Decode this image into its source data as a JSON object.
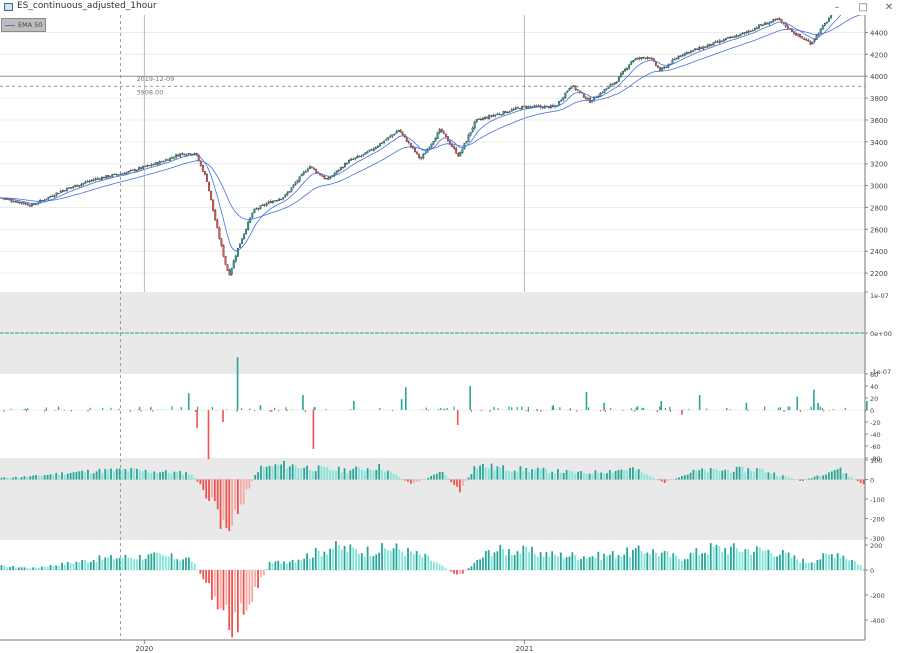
{
  "window": {
    "title": "ES_continuous_adjusted_1hour",
    "minimize": "–",
    "maximize": "□",
    "close": "✕"
  },
  "legend": {
    "label": "EMA 50",
    "color": "#4a6fdc"
  },
  "crosshair": {
    "date": "2019-12-09",
    "price": "3908.00"
  },
  "colors": {
    "up": "#26a69a",
    "down": "#ef5350",
    "up_light": "#80e5d8",
    "down_light": "#f7a8a6",
    "ema": "#4a6fdc",
    "panel_bg": "#e9e9e9"
  },
  "chart_data": [
    {
      "type": "candlestick",
      "name": "price",
      "x_range": [
        "2019-08-15",
        "2021-11-25"
      ],
      "ylim": [
        2100,
        4560
      ],
      "yticks": [
        "2200",
        "2400",
        "2600",
        "2800",
        "3000",
        "3200",
        "3400",
        "3600",
        "3800",
        "4000",
        "4200",
        "4400"
      ],
      "xticks": [
        {
          "date": "2020-01-01",
          "label": "2020"
        },
        {
          "date": "2021-01-01",
          "label": "2021"
        }
      ],
      "horizontal_line": 4000,
      "close_series": [
        [
          "2019-08-15",
          2890
        ],
        [
          "2019-09-15",
          2820
        ],
        [
          "2019-10-15",
          2960
        ],
        [
          "2019-11-15",
          3060
        ],
        [
          "2019-12-15",
          3120
        ],
        [
          "2020-01-15",
          3210
        ],
        [
          "2020-02-05",
          3290
        ],
        [
          "2020-02-19",
          3300
        ],
        [
          "2020-03-01",
          3060
        ],
        [
          "2020-03-10",
          2650
        ],
        [
          "2020-03-20",
          2250
        ],
        [
          "2020-03-23",
          2190
        ],
        [
          "2020-04-01",
          2450
        ],
        [
          "2020-04-15",
          2770
        ],
        [
          "2020-05-01",
          2850
        ],
        [
          "2020-05-15",
          2900
        ],
        [
          "2020-06-08",
          3180
        ],
        [
          "2020-06-25",
          3050
        ],
        [
          "2020-07-15",
          3220
        ],
        [
          "2020-08-01",
          3290
        ],
        [
          "2020-08-25",
          3450
        ],
        [
          "2020-09-02",
          3510
        ],
        [
          "2020-09-23",
          3240
        ],
        [
          "2020-10-12",
          3510
        ],
        [
          "2020-10-30",
          3270
        ],
        [
          "2020-11-15",
          3590
        ],
        [
          "2020-12-01",
          3640
        ],
        [
          "2020-12-31",
          3720
        ],
        [
          "2021-01-31",
          3720
        ],
        [
          "2021-02-15",
          3920
        ],
        [
          "2021-03-05",
          3770
        ],
        [
          "2021-03-31",
          3960
        ],
        [
          "2021-04-15",
          4150
        ],
        [
          "2021-05-01",
          4180
        ],
        [
          "2021-05-12",
          4050
        ],
        [
          "2021-06-01",
          4200
        ],
        [
          "2021-06-30",
          4290
        ],
        [
          "2021-07-15",
          4340
        ],
        [
          "2021-07-31",
          4390
        ],
        [
          "2021-08-15",
          4460
        ],
        [
          "2021-09-02",
          4520
        ],
        [
          "2021-09-20",
          4380
        ],
        [
          "2021-10-04",
          4300
        ],
        [
          "2021-10-22",
          4540
        ],
        [
          "2021-11-05",
          4690
        ],
        [
          "2021-11-18",
          4680
        ],
        [
          "2021-11-25",
          4560
        ]
      ],
      "overlay": {
        "name": "EMA 50"
      }
    },
    {
      "type": "line",
      "name": "panel-1",
      "ylim": [
        -1e-07,
        1e-07
      ],
      "yticks": [
        "1e-07",
        "0e+00",
        "-1e-07"
      ],
      "values": "constant 0"
    },
    {
      "type": "bar",
      "name": "panel-2",
      "ylim": [
        -80,
        60
      ],
      "yticks": [
        "60",
        "40",
        "20",
        "0",
        "-20",
        "-40",
        "-60",
        "-80"
      ],
      "spikes": [
        [
          "2020-02-20",
          -30
        ],
        [
          "2020-03-02",
          -82
        ],
        [
          "2020-03-16",
          -20
        ],
        [
          "2020-03-30",
          88
        ],
        [
          "2020-04-21",
          8
        ],
        [
          "2020-06-11",
          -65
        ],
        [
          "2020-02-12",
          28
        ],
        [
          "2020-06-01",
          25
        ],
        [
          "2020-07-20",
          15
        ],
        [
          "2020-09-08",
          38
        ],
        [
          "2020-09-04",
          18
        ],
        [
          "2020-10-28",
          -25
        ],
        [
          "2020-11-09",
          40
        ],
        [
          "2021-01-28",
          8
        ],
        [
          "2021-03-01",
          30
        ],
        [
          "2021-03-18",
          12
        ],
        [
          "2021-04-19",
          6
        ],
        [
          "2021-05-12",
          15
        ],
        [
          "2021-06-18",
          25
        ],
        [
          "2021-06-01",
          -8
        ],
        [
          "2021-08-02",
          12
        ],
        [
          "2021-09-20",
          22
        ],
        [
          "2021-10-06",
          34
        ],
        [
          "2021-10-10",
          12
        ],
        [
          "2021-11-26",
          15
        ]
      ]
    },
    {
      "type": "bar",
      "name": "panel-3",
      "ylim": [
        -310,
        110
      ],
      "yticks": [
        "100",
        "0",
        "-100",
        "-200",
        "-300"
      ],
      "envelope": [
        [
          "2019-08-15",
          10
        ],
        [
          "2019-09-15",
          20
        ],
        [
          "2019-10-15",
          40
        ],
        [
          "2019-11-15",
          55
        ],
        [
          "2019-12-15",
          60
        ],
        [
          "2020-01-15",
          50
        ],
        [
          "2020-02-15",
          40
        ],
        [
          "2020-02-25",
          -50
        ],
        [
          "2020-03-05",
          -150
        ],
        [
          "2020-03-15",
          -250
        ],
        [
          "2020-03-25",
          -310
        ],
        [
          "2020-04-05",
          -130
        ],
        [
          "2020-04-20",
          70
        ],
        [
          "2020-05-15",
          95
        ],
        [
          "2020-06-15",
          70
        ],
        [
          "2020-07-15",
          60
        ],
        [
          "2020-08-15",
          80
        ],
        [
          "2020-09-15",
          -30
        ],
        [
          "2020-10-15",
          50
        ],
        [
          "2020-10-30",
          -80
        ],
        [
          "2020-11-15",
          90
        ],
        [
          "2020-12-15",
          70
        ],
        [
          "2021-01-15",
          60
        ],
        [
          "2021-03-01",
          40
        ],
        [
          "2021-04-15",
          70
        ],
        [
          "2021-05-15",
          -20
        ],
        [
          "2021-06-15",
          55
        ],
        [
          "2021-08-15",
          65
        ],
        [
          "2021-09-25",
          -10
        ],
        [
          "2021-10-30",
          70
        ],
        [
          "2021-11-25",
          -40
        ]
      ]
    },
    {
      "type": "bar",
      "name": "panel-4",
      "ylim": [
        -560,
        240
      ],
      "yticks": [
        "200",
        "0",
        "-200",
        "-400"
      ],
      "envelope": [
        [
          "2019-08-15",
          40
        ],
        [
          "2019-09-15",
          20
        ],
        [
          "2019-10-15",
          60
        ],
        [
          "2019-11-15",
          110
        ],
        [
          "2019-12-15",
          130
        ],
        [
          "2020-01-15",
          140
        ],
        [
          "2020-02-15",
          110
        ],
        [
          "2020-02-25",
          -60
        ],
        [
          "2020-03-10",
          -300
        ],
        [
          "2020-03-25",
          -560
        ],
        [
          "2020-04-10",
          -350
        ],
        [
          "2020-04-30",
          60
        ],
        [
          "2020-05-30",
          120
        ],
        [
          "2020-06-30",
          230
        ],
        [
          "2020-07-30",
          190
        ],
        [
          "2020-08-30",
          220
        ],
        [
          "2020-09-30",
          120
        ],
        [
          "2020-10-30",
          -60
        ],
        [
          "2020-11-30",
          200
        ],
        [
          "2020-12-30",
          190
        ],
        [
          "2021-01-30",
          150
        ],
        [
          "2021-03-15",
          140
        ],
        [
          "2021-04-30",
          200
        ],
        [
          "2021-05-30",
          120
        ],
        [
          "2021-06-30",
          220
        ],
        [
          "2021-07-30",
          210
        ],
        [
          "2021-08-30",
          190
        ],
        [
          "2021-09-30",
          80
        ],
        [
          "2021-10-30",
          180
        ],
        [
          "2021-11-20",
          60
        ],
        [
          "2021-11-25",
          -10
        ]
      ]
    }
  ]
}
